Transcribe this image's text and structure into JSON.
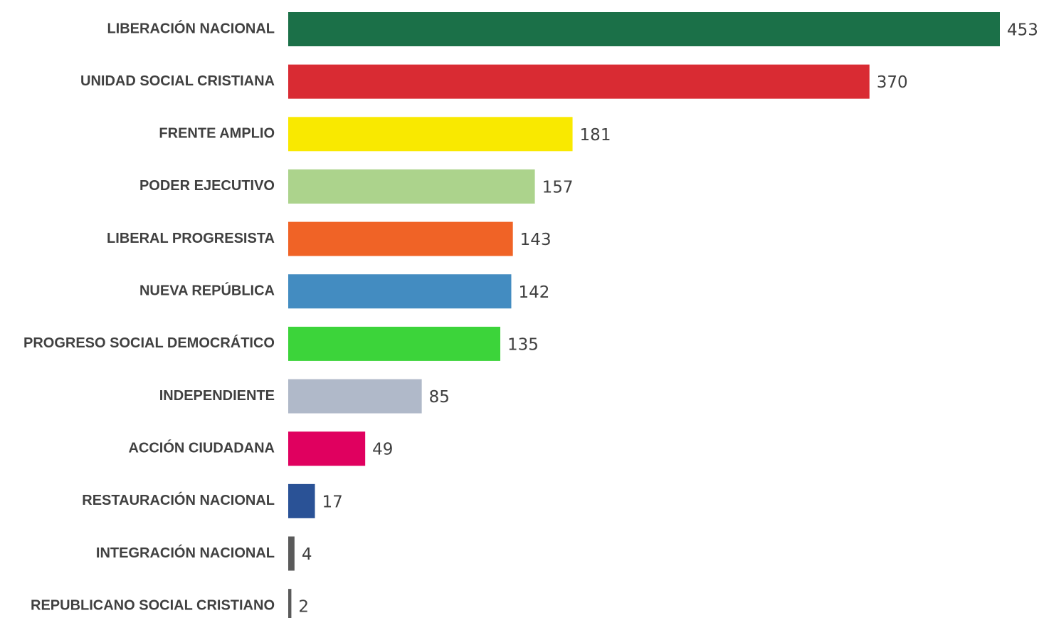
{
  "chart_data": {
    "type": "hbar",
    "categories": [
      "LIBERACIÓN NACIONAL",
      "UNIDAD SOCIAL CRISTIANA",
      "FRENTE AMPLIO",
      "PODER EJECUTIVO",
      "LIBERAL PROGRESISTA",
      "NUEVA REPÚBLICA",
      "PROGRESO SOCIAL DEMOCRÁTICO",
      "INDEPENDIENTE",
      "ACCIÓN CIUDADANA",
      "RESTAURACIÓN NACIONAL",
      "INTEGRACIÓN NACIONAL",
      "REPUBLICANO SOCIAL CRISTIANO"
    ],
    "values": [
      453,
      370,
      181,
      157,
      143,
      142,
      135,
      85,
      49,
      17,
      4,
      2
    ],
    "colors": [
      "#1b7048",
      "#d92b33",
      "#f9e900",
      "#acd38c",
      "#f06326",
      "#438cc1",
      "#3cd43a",
      "#b0b9c9",
      "#e0005f",
      "#2a5296",
      "#5a5a5a",
      "#5a5a5a"
    ]
  }
}
